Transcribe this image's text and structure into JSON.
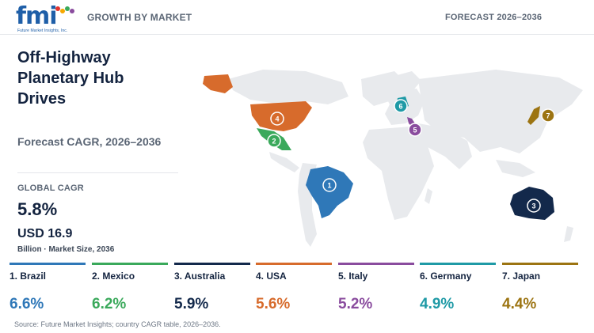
{
  "header": {
    "logo": {
      "wordmark": "fmi",
      "tagline": "Future Market Insights, Inc."
    },
    "section_label": "GROWTH BY MARKET",
    "forecast_label": "FORECAST 2026–2036"
  },
  "title": "Off-Highway Planetary Hub Drives",
  "cagr_subtitle": "Forecast CAGR, 2026–2036",
  "global": {
    "label": "GLOBAL CAGR",
    "value": "5.8%",
    "market_size": "USD 16.9",
    "market_size_caption": "Billion · Market Size, 2036"
  },
  "map": {
    "markers": [
      {
        "rank": "1",
        "country": "Brazil",
        "color": "#2f78b8"
      },
      {
        "rank": "2",
        "country": "Mexico",
        "color": "#3aa95b"
      },
      {
        "rank": "3",
        "country": "Australia",
        "color": "#13294b"
      },
      {
        "rank": "4",
        "country": "USA",
        "color": "#d76b2c"
      },
      {
        "rank": "5",
        "country": "Italy",
        "color": "#8a4c9e"
      },
      {
        "rank": "6",
        "country": "Germany",
        "color": "#1f9aa6"
      },
      {
        "rank": "7",
        "country": "Japan",
        "color": "#9c7412"
      }
    ],
    "land_color": "#e8eaed"
  },
  "countries": [
    {
      "label": "1. Brazil",
      "value": "6.6%",
      "color": "#2f78b8"
    },
    {
      "label": "2. Mexico",
      "value": "6.2%",
      "color": "#3aa95b"
    },
    {
      "label": "3. Australia",
      "value": "5.9%",
      "color": "#13294b"
    },
    {
      "label": "4. USA",
      "value": "5.6%",
      "color": "#d76b2c"
    },
    {
      "label": "5. Italy",
      "value": "5.2%",
      "color": "#8a4c9e"
    },
    {
      "label": "6. Germany",
      "value": "4.9%",
      "color": "#1f9aa6"
    },
    {
      "label": "7. Japan",
      "value": "4.4%",
      "color": "#9c7412"
    }
  ],
  "source": "Source: Future Market Insights; country CAGR table, 2026–2036."
}
